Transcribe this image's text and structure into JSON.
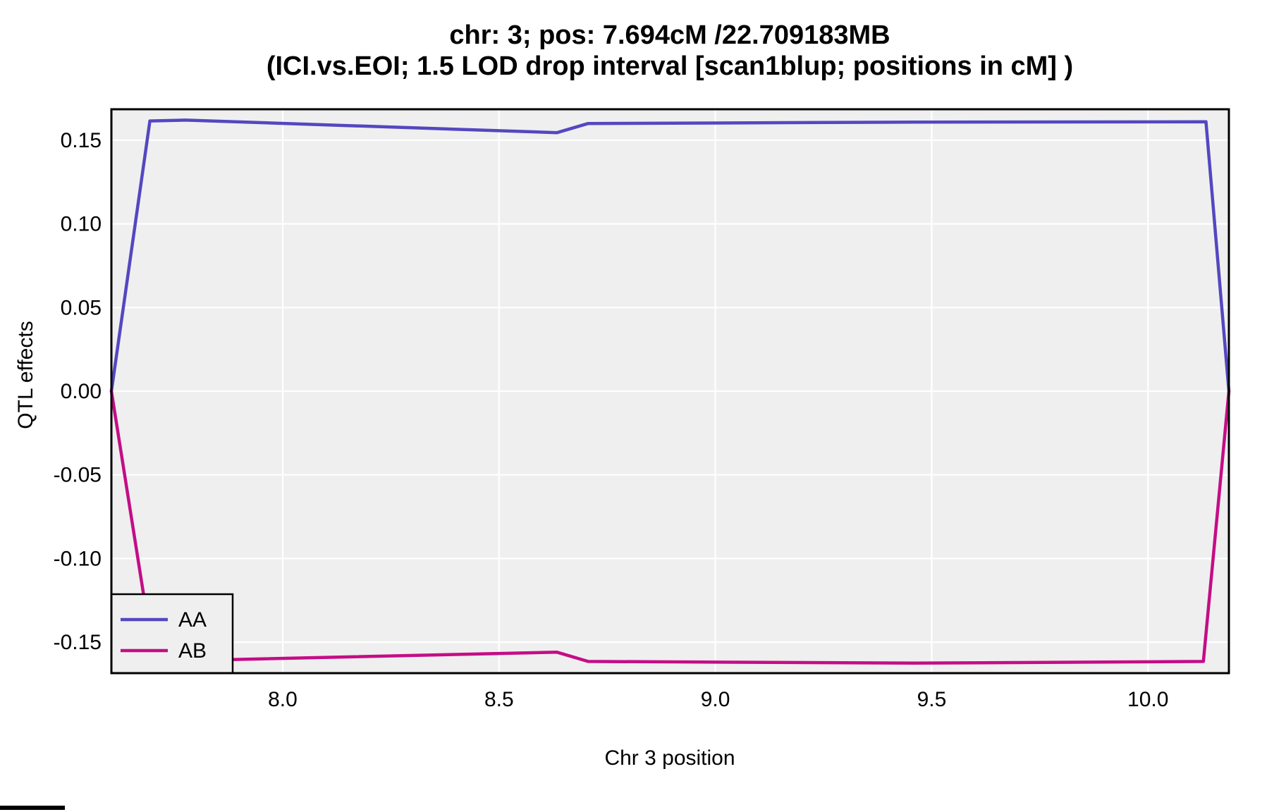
{
  "title": {
    "line1": "chr: 3; pos: 7.694cM /22.709183MB",
    "line2": "(ICI.vs.EOI; 1.5 LOD drop interval [scan1blup; positions in cM] )"
  },
  "chart_data": {
    "type": "line",
    "title_line1": "chr: 3; pos: 7.694cM /22.709183MB",
    "title_line2": "(ICI.vs.EOI; 1.5 LOD drop interval [scan1blup; positions in cM] )",
    "xlabel": "Chr 3 position",
    "ylabel": "QTL effects",
    "xlim": [
      7.604,
      10.187
    ],
    "ylim": [
      -0.1685,
      0.1685
    ],
    "xticks": [
      {
        "value": 8.0,
        "label": "8.0"
      },
      {
        "value": 8.5,
        "label": "8.5"
      },
      {
        "value": 9.0,
        "label": "9.0"
      },
      {
        "value": 9.5,
        "label": "9.5"
      },
      {
        "value": 10.0,
        "label": "10.0"
      }
    ],
    "yticks": [
      {
        "value": 0.15,
        "label": "0.15"
      },
      {
        "value": 0.1,
        "label": "0.10"
      },
      {
        "value": 0.05,
        "label": "0.05"
      },
      {
        "value": 0.0,
        "label": "0.00"
      },
      {
        "value": -0.05,
        "label": "-0.05"
      },
      {
        "value": -0.1,
        "label": "-0.10"
      },
      {
        "value": -0.15,
        "label": "-0.15"
      }
    ],
    "grid": {
      "major": true,
      "minor": false,
      "grid_color": "#FFFFFF",
      "panel_background": "#EFEFEF",
      "panel_border": "#000000"
    },
    "legend": {
      "position": "bottom-left",
      "entries": [
        {
          "label": "AA",
          "color": "#5447C0"
        },
        {
          "label": "AB",
          "color": "#C40D86"
        }
      ]
    },
    "series": [
      {
        "name": "AA",
        "color": "#5447C0",
        "x": [
          7.604,
          7.693,
          7.775,
          8.634,
          8.706,
          9.459,
          10.134,
          10.187
        ],
        "y": [
          0.0,
          0.1615,
          0.162,
          0.1545,
          0.16,
          0.1608,
          0.161,
          0.0
        ]
      },
      {
        "name": "AB",
        "color": "#C40D86",
        "x": [
          7.604,
          7.702,
          7.775,
          8.634,
          8.706,
          9.459,
          10.128,
          10.187
        ],
        "y": [
          0.0,
          -0.16,
          -0.161,
          -0.156,
          -0.1615,
          -0.1625,
          -0.1615,
          0.0
        ]
      }
    ]
  }
}
